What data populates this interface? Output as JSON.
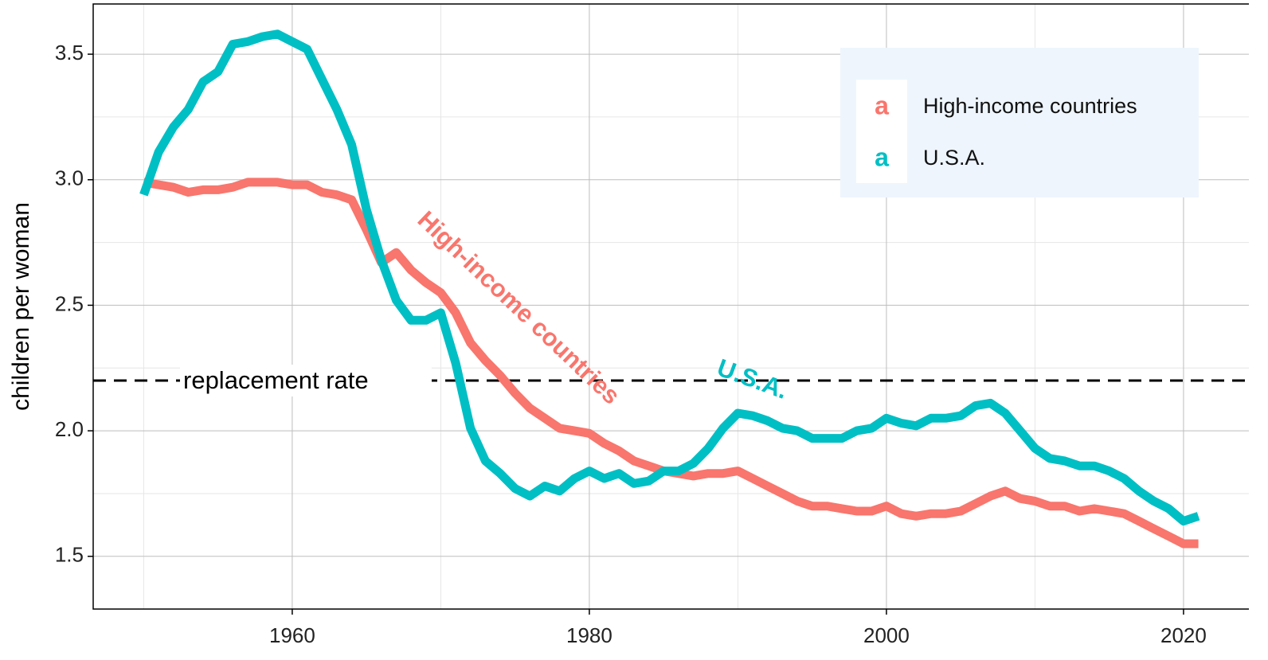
{
  "chart_data": {
    "type": "line",
    "ylabel": "children per woman",
    "x": [
      1950,
      1951,
      1952,
      1953,
      1954,
      1955,
      1956,
      1957,
      1958,
      1959,
      1960,
      1961,
      1962,
      1963,
      1964,
      1965,
      1966,
      1967,
      1968,
      1969,
      1970,
      1971,
      1972,
      1973,
      1974,
      1975,
      1976,
      1977,
      1978,
      1979,
      1980,
      1981,
      1982,
      1983,
      1984,
      1985,
      1986,
      1987,
      1988,
      1989,
      1990,
      1991,
      1992,
      1993,
      1994,
      1995,
      1996,
      1997,
      1998,
      1999,
      2000,
      2001,
      2002,
      2003,
      2004,
      2005,
      2006,
      2007,
      2008,
      2009,
      2010,
      2011,
      2012,
      2013,
      2014,
      2015,
      2016,
      2017,
      2018,
      2019,
      2020,
      2021
    ],
    "series": [
      {
        "name": "High-income countries",
        "color": "#F8766D",
        "values": [
          2.99,
          2.98,
          2.97,
          2.95,
          2.96,
          2.96,
          2.97,
          2.99,
          2.99,
          2.99,
          2.98,
          2.98,
          2.95,
          2.94,
          2.92,
          2.8,
          2.67,
          2.71,
          2.64,
          2.59,
          2.55,
          2.47,
          2.35,
          2.28,
          2.22,
          2.15,
          2.09,
          2.05,
          2.01,
          2.0,
          1.99,
          1.95,
          1.92,
          1.88,
          1.86,
          1.84,
          1.83,
          1.82,
          1.83,
          1.83,
          1.84,
          1.81,
          1.78,
          1.75,
          1.72,
          1.7,
          1.7,
          1.69,
          1.68,
          1.68,
          1.7,
          1.67,
          1.66,
          1.67,
          1.67,
          1.68,
          1.71,
          1.74,
          1.76,
          1.73,
          1.72,
          1.7,
          1.7,
          1.68,
          1.69,
          1.68,
          1.67,
          1.64,
          1.61,
          1.58,
          1.55,
          1.55
        ]
      },
      {
        "name": "U.S.A.",
        "color": "#00BFC4",
        "values": [
          2.94,
          3.11,
          3.21,
          3.28,
          3.39,
          3.43,
          3.54,
          3.55,
          3.57,
          3.58,
          3.55,
          3.52,
          3.4,
          3.28,
          3.14,
          2.88,
          2.68,
          2.52,
          2.44,
          2.44,
          2.47,
          2.27,
          2.01,
          1.88,
          1.83,
          1.77,
          1.74,
          1.78,
          1.76,
          1.81,
          1.84,
          1.81,
          1.83,
          1.79,
          1.8,
          1.84,
          1.84,
          1.87,
          1.93,
          2.01,
          2.07,
          2.06,
          2.04,
          2.01,
          2.0,
          1.97,
          1.97,
          1.97,
          2.0,
          2.01,
          2.05,
          2.03,
          2.02,
          2.05,
          2.05,
          2.06,
          2.1,
          2.11,
          2.07,
          2.0,
          1.93,
          1.89,
          1.88,
          1.86,
          1.86,
          1.84,
          1.81,
          1.76,
          1.72,
          1.69,
          1.64,
          1.66
        ]
      }
    ],
    "annotations": [
      "High-income countries",
      "U.S.A.",
      "replacement rate"
    ],
    "hline": 2.2,
    "xlim": [
      1946.6,
      2024.4
    ],
    "xticks": [
      1960,
      1980,
      2000,
      2020
    ],
    "x_minor_grid": [
      1950,
      1970,
      1990,
      2010
    ],
    "ylim": [
      1.29,
      3.7
    ],
    "yticks": [
      {
        "value": 1.5,
        "label": "1.5"
      },
      {
        "value": 2,
        "label": "2.0"
      },
      {
        "value": 2.5,
        "label": "2.5"
      },
      {
        "value": 3,
        "label": "3.0"
      },
      {
        "value": 3.5,
        "label": "3.5"
      }
    ],
    "y_minor_grid": [
      1.75,
      2.25,
      2.75,
      3.25
    ],
    "grid": true,
    "legend": "top-right"
  }
}
